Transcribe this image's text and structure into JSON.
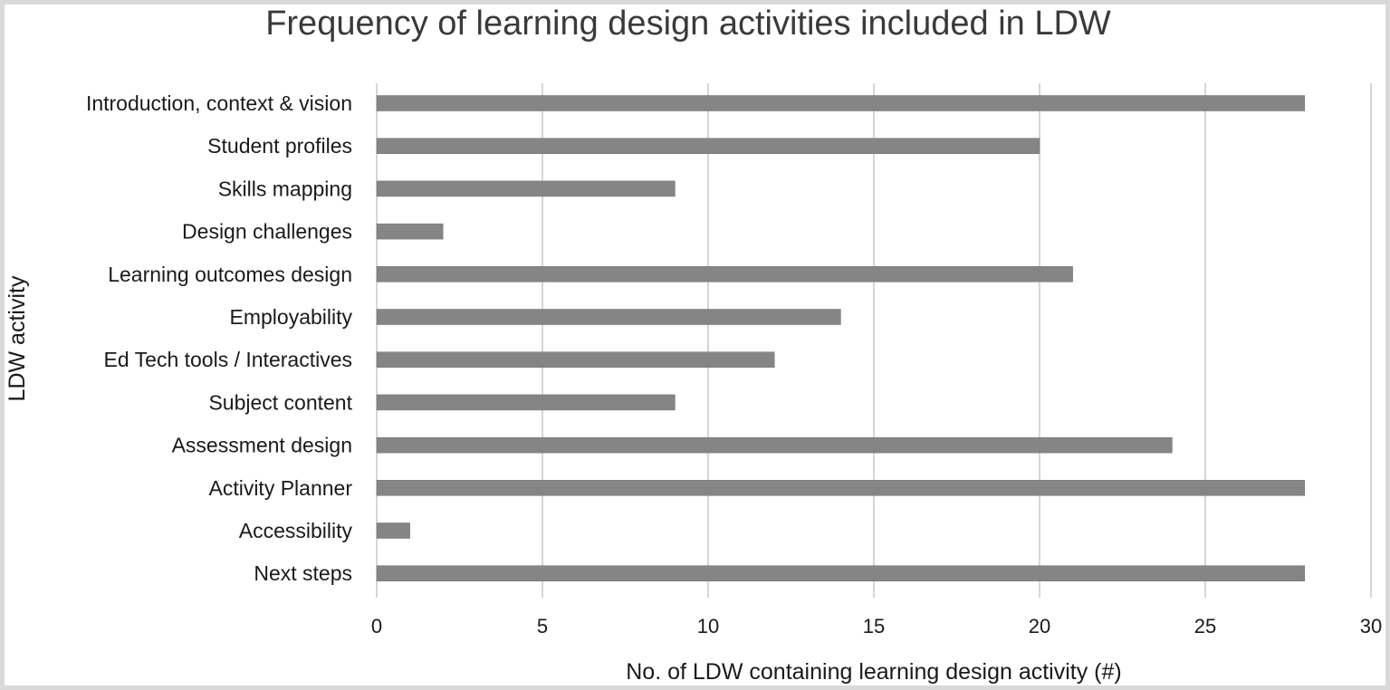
{
  "chart_data": {
    "type": "bar",
    "orientation": "horizontal",
    "title": "Frequency of learning design activities included in LDW",
    "xlabel": "No. of LDW containing learning design activity (#)",
    "ylabel": "LDW activity",
    "categories": [
      "Introduction, context & vision",
      "Student profiles",
      "Skills mapping",
      "Design challenges",
      "Learning outcomes design",
      "Employability",
      "Ed Tech tools / Interactives",
      "Subject content",
      "Assessment design",
      "Activity Planner",
      "Accessibility",
      "Next steps"
    ],
    "values": [
      28,
      20,
      9,
      2,
      21,
      14,
      12,
      9,
      24,
      28,
      1,
      28
    ],
    "xlim": [
      0,
      30
    ],
    "xticks": [
      0,
      5,
      10,
      15,
      20,
      25,
      30
    ],
    "grid": "vertical",
    "bar_color": "#858585",
    "legend": "none"
  }
}
